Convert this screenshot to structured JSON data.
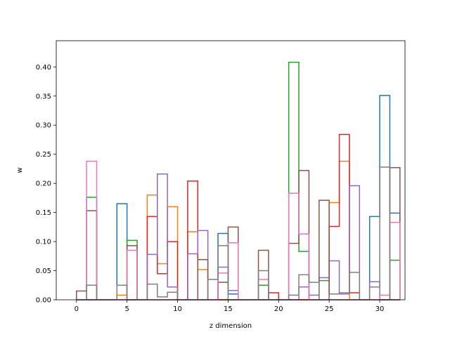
{
  "chart_data": {
    "type": "histogram-step",
    "title": "",
    "xlabel": "z dimension",
    "ylabel": "w",
    "xlim": [
      -2.0,
      32.5
    ],
    "ylim": [
      0,
      0.445
    ],
    "x_ticks": [
      0,
      5,
      10,
      15,
      20,
      25,
      30
    ],
    "x_tick_labels": [
      "0",
      "5",
      "10",
      "15",
      "20",
      "25",
      "30"
    ],
    "y_ticks": [
      0.0,
      0.05,
      0.1,
      0.15,
      0.2,
      0.25,
      0.3,
      0.35,
      0.4
    ],
    "y_tick_labels": [
      "0.00",
      "0.05",
      "0.10",
      "0.15",
      "0.20",
      "0.25",
      "0.30",
      "0.35",
      "0.40"
    ],
    "grid": false,
    "bins_start": 0,
    "bin_width": 1,
    "series": [
      {
        "color": "#1f77b4",
        "values": [
          0,
          0,
          0,
          0,
          0.165,
          0,
          0,
          0,
          0,
          0,
          0,
          0,
          0,
          0,
          0.114,
          0.01,
          0,
          0,
          0,
          0,
          0,
          0,
          0,
          0,
          0,
          0,
          0,
          0,
          0,
          0.143,
          0.351,
          0.149
        ]
      },
      {
        "color": "#ff7f0e",
        "values": [
          0,
          0,
          0,
          0,
          0.008,
          0,
          0,
          0.18,
          0.062,
          0.16,
          0,
          0.117,
          0.052,
          0,
          0,
          0,
          0,
          0,
          0,
          0,
          0,
          0,
          0,
          0,
          0,
          0.167,
          0.238,
          0,
          0,
          0,
          0,
          0
        ]
      },
      {
        "color": "#2ca02c",
        "values": [
          0,
          0.176,
          0,
          0,
          0,
          0.102,
          0,
          0,
          0,
          0,
          0,
          0,
          0,
          0,
          0,
          0,
          0,
          0,
          0.025,
          0,
          0,
          0.408,
          0.083,
          0,
          0.033,
          0,
          0,
          0,
          0,
          0,
          0,
          0.068
        ]
      },
      {
        "color": "#d62728",
        "values": [
          0,
          0,
          0,
          0,
          0,
          0,
          0,
          0.143,
          0.045,
          0.1,
          0,
          0.204,
          0,
          0,
          0,
          0,
          0,
          0,
          0,
          0.012,
          0,
          0,
          0,
          0,
          0,
          0.126,
          0.284,
          0.012,
          0,
          0,
          0,
          0
        ]
      },
      {
        "color": "#9467bd",
        "values": [
          0,
          0,
          0,
          0,
          0,
          0,
          0,
          0.078,
          0.216,
          0.022,
          0,
          0.079,
          0.119,
          0,
          0.056,
          0.016,
          0,
          0,
          0,
          0,
          0,
          0,
          0.022,
          0.008,
          0.038,
          0.067,
          0.01,
          0.196,
          0,
          0.031,
          0,
          0
        ]
      },
      {
        "color": "#8c564b",
        "values": [
          0.015,
          0.153,
          0,
          0,
          0,
          0.093,
          0,
          0,
          0,
          0,
          0,
          0,
          0.069,
          0,
          0.03,
          0.125,
          0,
          0,
          0.085,
          0,
          0,
          0.097,
          0.222,
          0,
          0.171,
          0,
          0,
          0,
          0,
          0,
          0,
          0.227
        ]
      },
      {
        "color": "#e377c2",
        "values": [
          0,
          0.238,
          0,
          0,
          0,
          0.085,
          0,
          0,
          0,
          0,
          0,
          0,
          0,
          0,
          0.046,
          0.098,
          0,
          0,
          0.035,
          0,
          0,
          0.183,
          0.113,
          0,
          0,
          0,
          0,
          0,
          0,
          0,
          0.008,
          0.133
        ]
      },
      {
        "color": "#7f7f7f",
        "values": [
          0,
          0.025,
          0,
          0,
          0.025,
          0,
          0,
          0.027,
          0.005,
          0.013,
          0,
          0,
          0,
          0.035,
          0.093,
          0,
          0,
          0,
          0.05,
          0,
          0,
          0.008,
          0.043,
          0.03,
          0,
          0.01,
          0.012,
          0.047,
          0,
          0.022,
          0.228,
          0
        ]
      }
    ]
  }
}
